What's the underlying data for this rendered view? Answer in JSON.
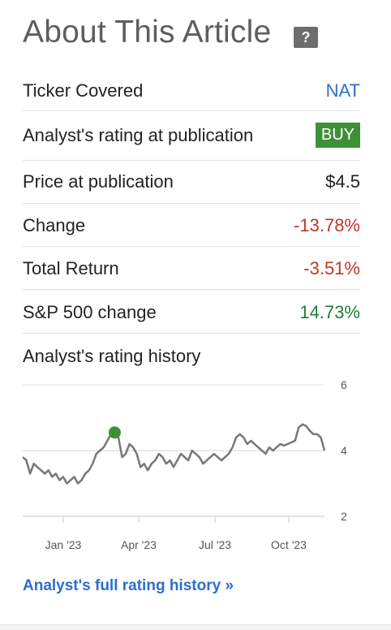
{
  "header": {
    "title": "About This Article",
    "help_label": "?"
  },
  "details": {
    "ticker_label": "Ticker Covered",
    "ticker_value": "NAT",
    "rating_label": "Analyst's rating at publication",
    "rating_value": "BUY",
    "price_label": "Price at publication",
    "price_value": "$4.5",
    "change_label": "Change",
    "change_value": "-13.78%",
    "total_return_label": "Total Return",
    "total_return_value": "-3.51%",
    "sp500_label": "S&P 500 change",
    "sp500_value": "14.73%",
    "history_label": "Analyst's rating history",
    "full_history_link": "Analyst's full rating history »"
  },
  "colors": {
    "link": "#2c6ecb",
    "negative": "#c1352a",
    "positive": "#1e7e3c",
    "buy_badge": "#3f8f36",
    "line": "#777777"
  },
  "chart_data": {
    "type": "line",
    "ylim": [
      2,
      6
    ],
    "y_ticks": [
      "2",
      "4",
      "6"
    ],
    "x_ticks": [
      "Jan '23",
      "Apr '23",
      "Jul '23",
      "Oct '23"
    ],
    "grid": true,
    "marker": {
      "index": 25,
      "label": "BUY"
    },
    "values": [
      3.8,
      3.7,
      3.3,
      3.6,
      3.5,
      3.4,
      3.3,
      3.4,
      3.2,
      3.3,
      3.1,
      3.2,
      3.0,
      3.1,
      3.2,
      3.0,
      3.1,
      3.3,
      3.4,
      3.6,
      3.9,
      4.0,
      4.1,
      4.3,
      4.5,
      4.55,
      4.4,
      3.8,
      3.9,
      4.2,
      4.1,
      3.9,
      3.5,
      3.6,
      3.4,
      3.6,
      3.7,
      3.9,
      3.8,
      3.6,
      3.7,
      3.5,
      3.7,
      3.9,
      3.8,
      3.7,
      4.0,
      3.9,
      3.8,
      3.6,
      3.7,
      3.8,
      3.9,
      3.8,
      3.7,
      3.8,
      3.9,
      4.1,
      4.4,
      4.5,
      4.4,
      4.2,
      4.3,
      4.2,
      4.1,
      4.0,
      3.9,
      4.1,
      4.0,
      4.1,
      4.2,
      4.15,
      4.2,
      4.25,
      4.3,
      4.7,
      4.8,
      4.75,
      4.6,
      4.5,
      4.5,
      4.4,
      4.0
    ]
  }
}
